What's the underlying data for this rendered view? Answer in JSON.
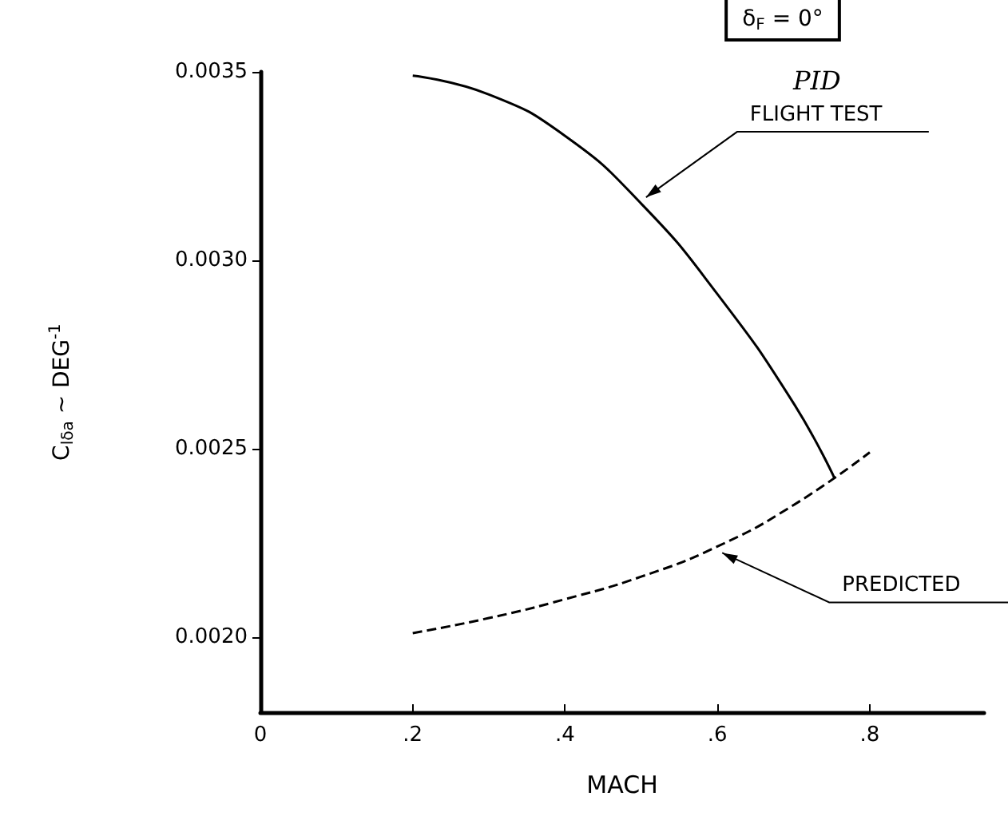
{
  "chart_data": {
    "type": "line",
    "xlabel": "MACH",
    "ylabel": "C$_{lδa}$ ~ DEG$^{-1}$",
    "annotations": [
      "δ$_{F}$ = 0°",
      "PID"
    ],
    "xlim": [
      0,
      0.95
    ],
    "xticks": [
      0,
      {
        "value": 0.2,
        "label": ".2"
      },
      {
        "value": 0.4,
        "label": ".4"
      },
      {
        "value": 0.6,
        "label": ".6"
      },
      {
        "value": 0.8,
        "label": ".8"
      }
    ],
    "ylim": [
      0.0018,
      0.0035
    ],
    "yticks": [
      {
        "value": 0.002,
        "label": "0.0020"
      },
      {
        "value": 0.0025,
        "label": "0.0025"
      },
      {
        "value": 0.003,
        "label": "0.0030"
      },
      {
        "value": 0.0035,
        "label": "0.0035"
      }
    ],
    "series": [
      {
        "name": "FLIGHT TEST",
        "color": "#000000",
        "line_style": "solid",
        "x": [
          0.2,
          0.3,
          0.4,
          0.5,
          0.6,
          0.7,
          0.754
        ],
        "values": [
          0.00349,
          0.00344,
          0.00333,
          0.00315,
          0.00291,
          0.00262,
          0.00242
        ]
      },
      {
        "name": "PREDICTED",
        "color": "#000000",
        "line_style": "dashed",
        "x": [
          0.2,
          0.3,
          0.4,
          0.5,
          0.6,
          0.7,
          0.8
        ],
        "values": [
          0.00201,
          0.00205,
          0.0021,
          0.00216,
          0.00224,
          0.00235,
          0.00249
        ]
      }
    ],
    "grid": false,
    "legend": false,
    "marker": "none"
  }
}
